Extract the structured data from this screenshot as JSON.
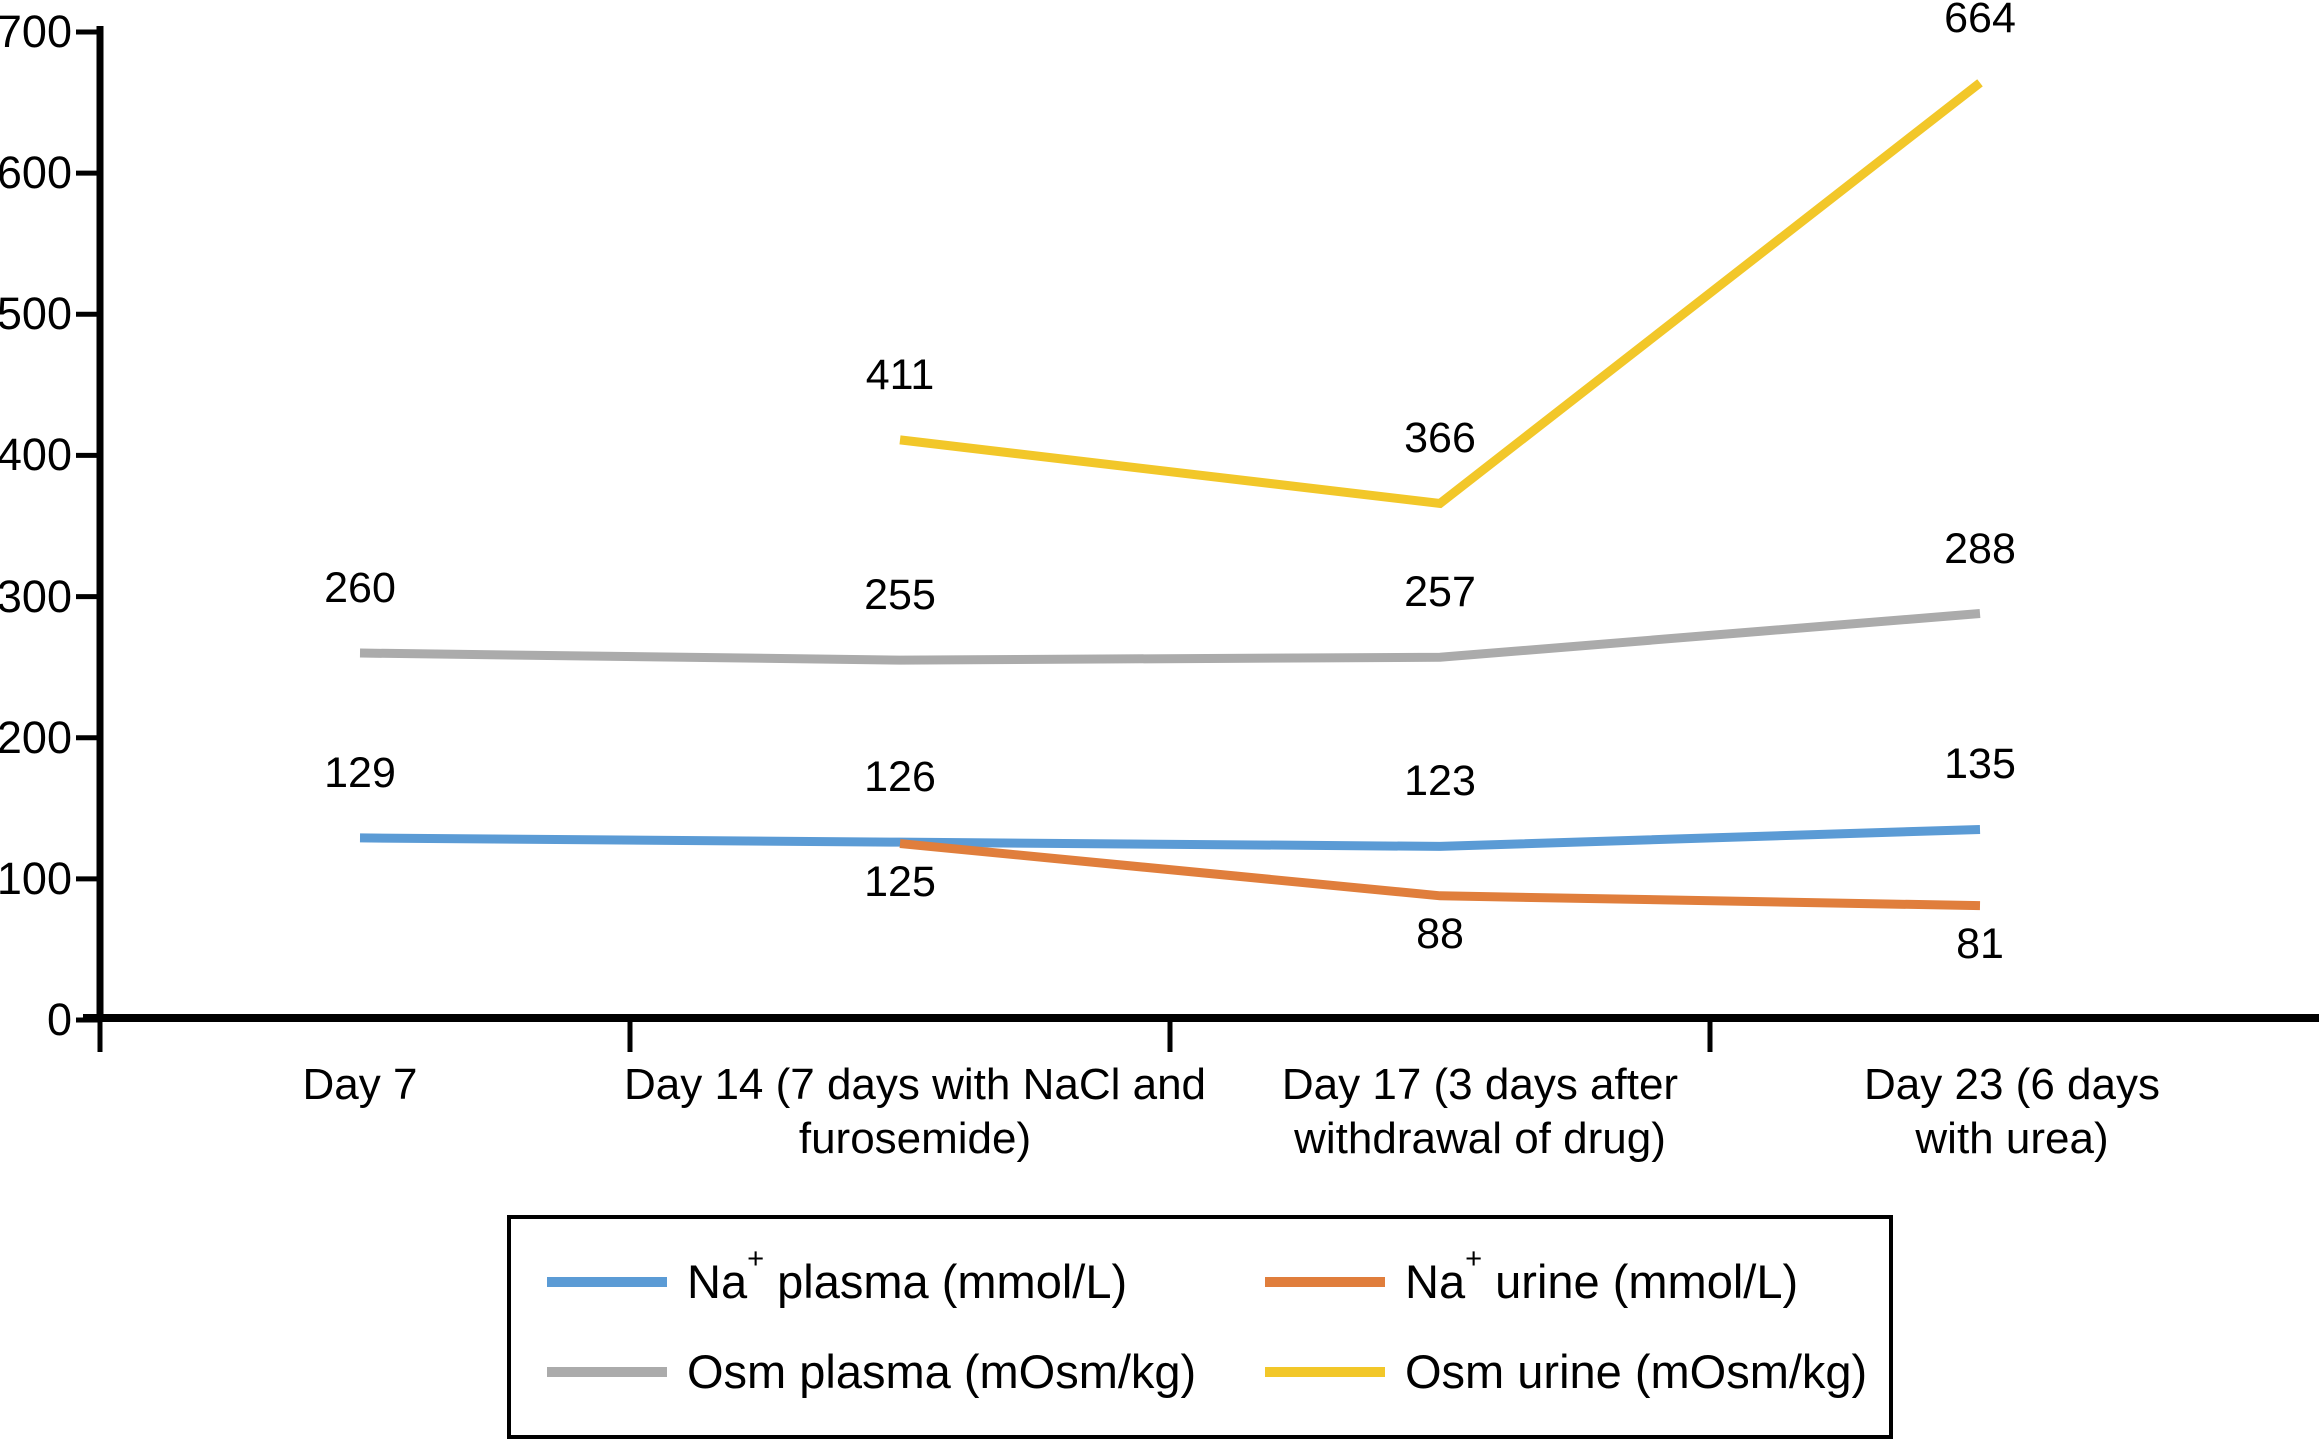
{
  "chart_data": {
    "type": "line",
    "title": "",
    "xlabel": "",
    "ylabel": "",
    "ylim": [
      0,
      700
    ],
    "yticks": [
      0,
      100,
      200,
      300,
      400,
      500,
      600,
      700
    ],
    "grid": false,
    "legend_position": "bottom-box",
    "axis_color": "#000000",
    "text_color": "#000000",
    "background": "#FFFFFF",
    "categories": [
      "Day 7",
      "Day 14 (7 days with NaCl and furosemide)",
      "Day 17 (3 days after withdrawal of drug)",
      "Day 23 (6 days with urea)"
    ],
    "series": [
      {
        "name": "Na+ plasma (mmol/L)",
        "name_pre": "Na",
        "name_sup": "+",
        "name_post": " plasma (mmol/L)",
        "color": "#5B9BD5",
        "values": [
          129,
          126,
          123,
          135
        ],
        "label_position": "above"
      },
      {
        "name": "Na+ urine (mmol/L)",
        "name_pre": "Na",
        "name_sup": "+",
        "name_post": " urine (mmol/L)",
        "color": "#E07E3C",
        "values": [
          null,
          125,
          88,
          81
        ],
        "label_position": "below"
      },
      {
        "name": "Osm plasma (mOsm/kg)",
        "name_pre": "Osm",
        "name_sup": "",
        "name_post": " plasma (mOsm/kg)",
        "color": "#ABABAB",
        "values": [
          260,
          255,
          257,
          288
        ],
        "label_position": "above"
      },
      {
        "name": "Osm urine (mOsm/kg)",
        "name_pre": "Osm",
        "name_sup": "",
        "name_post": " urine (mOsm/kg)",
        "color": "#F2C729",
        "values": [
          null,
          411,
          366,
          664
        ],
        "label_position": "above"
      }
    ]
  }
}
